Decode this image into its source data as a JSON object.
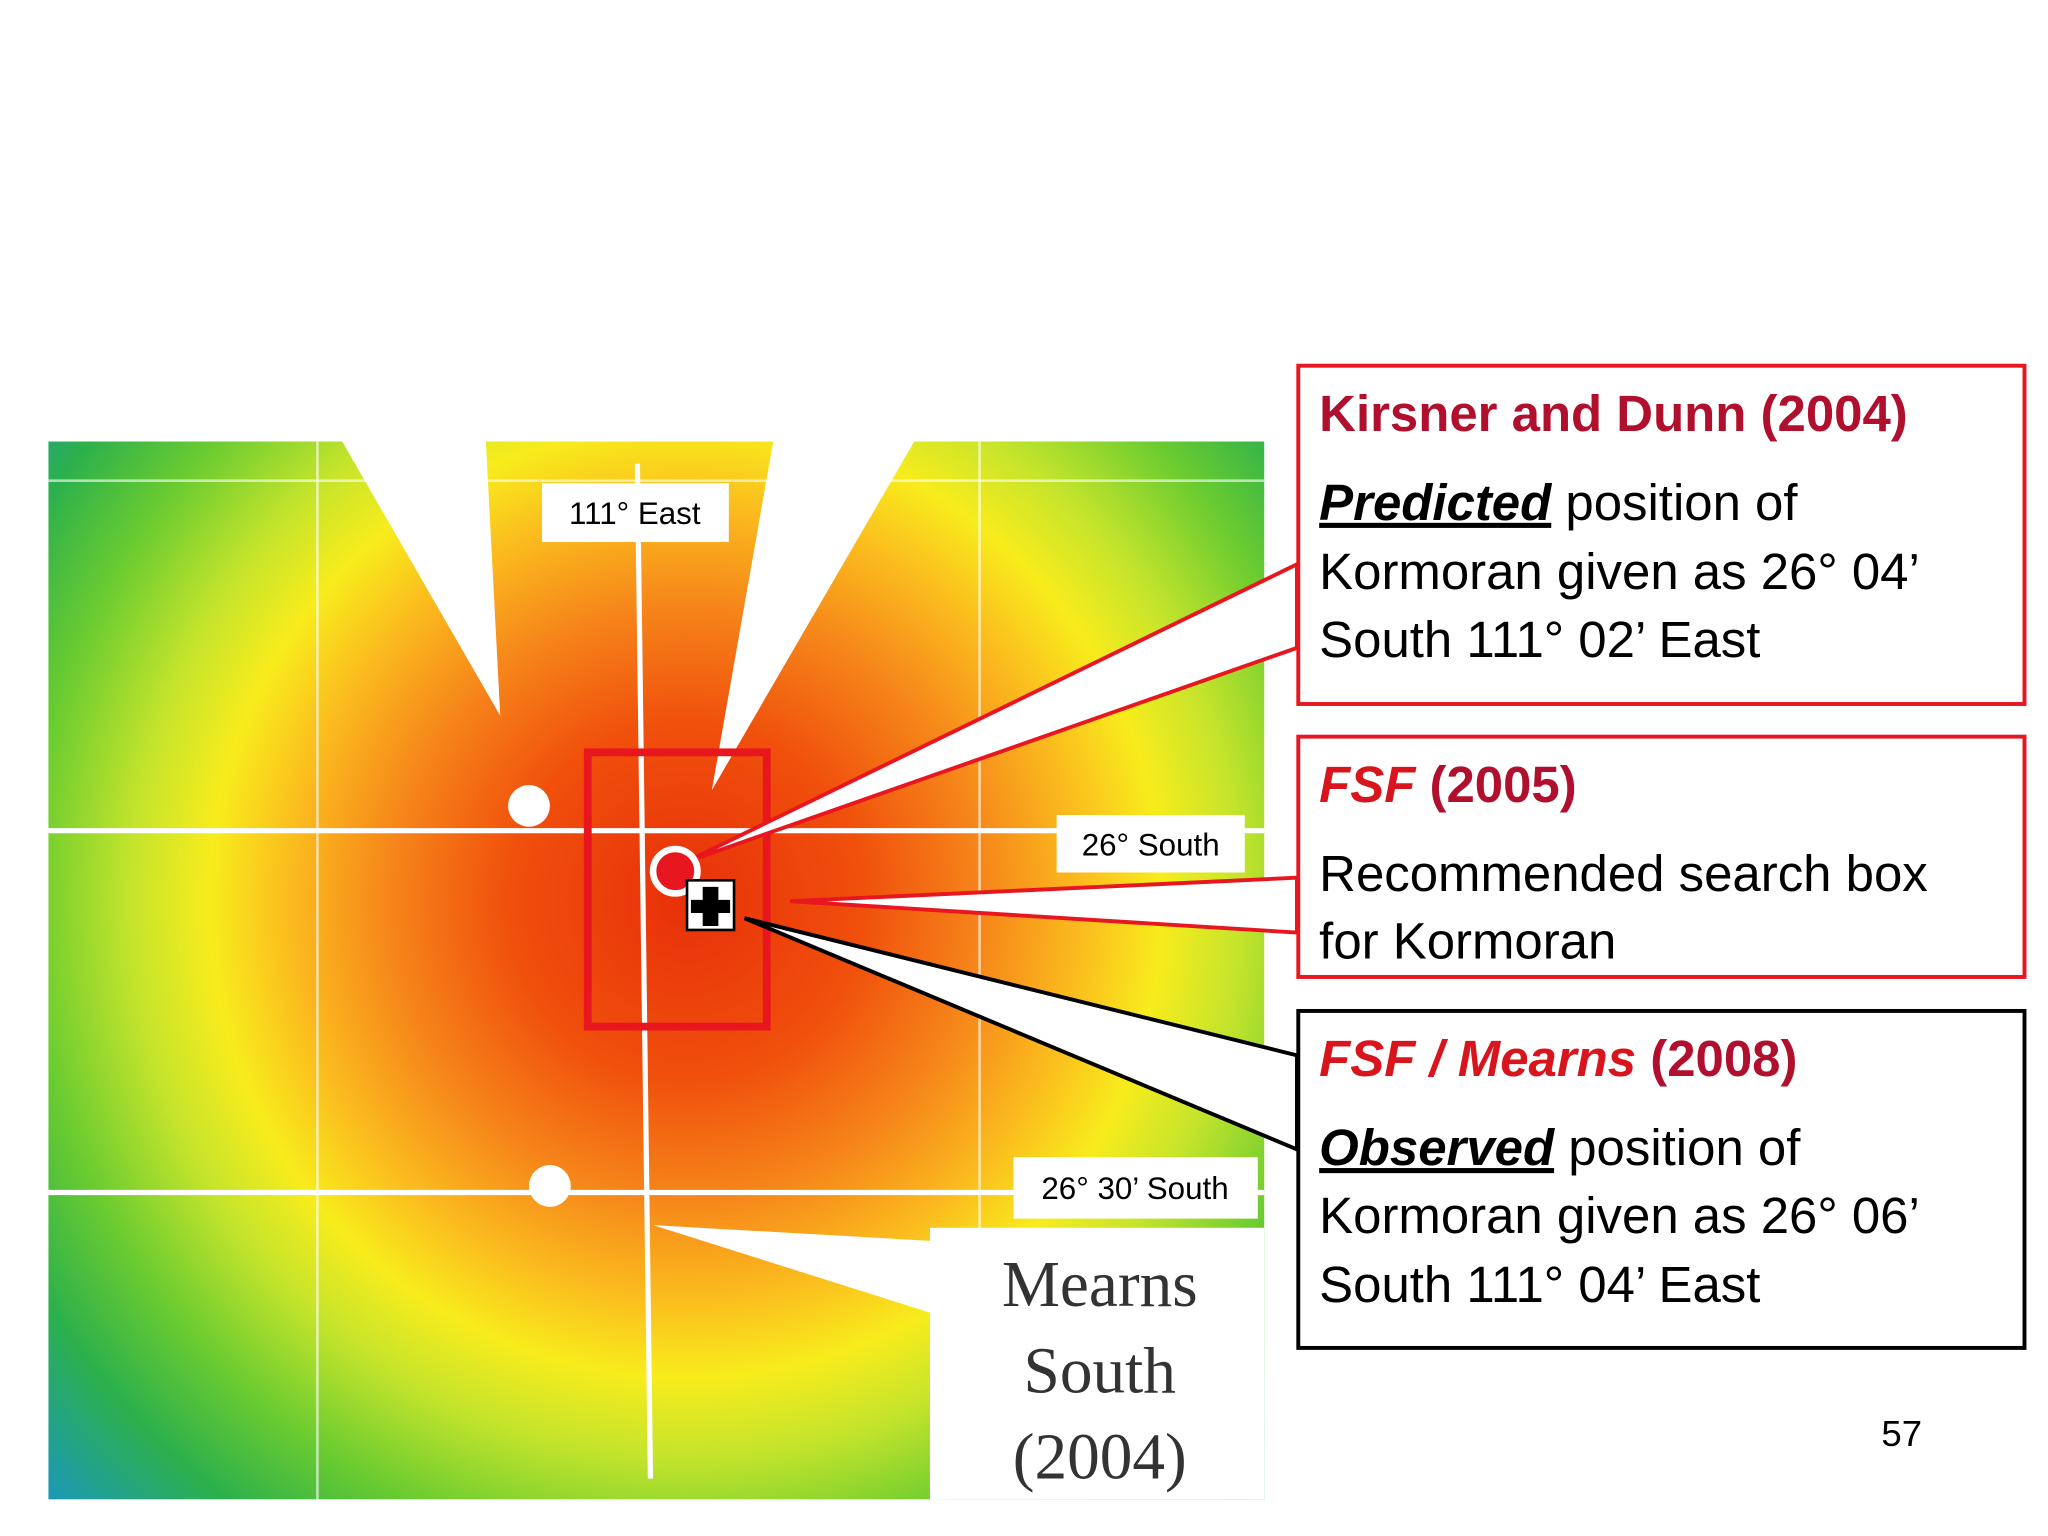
{
  "map": {
    "labels": {
      "east": "111° East",
      "south": "26° South",
      "south30": "26° 30’ South"
    },
    "credit": [
      "Mearns",
      "South",
      "(2004)"
    ]
  },
  "callouts": [
    {
      "title": "Kirsner and Dunn (2004)",
      "emphasis": "Predicted",
      "lines": [
        " position of",
        "Kormoran given as 26° 04’",
        "South 111° 02’ East"
      ]
    },
    {
      "title_emphasis": "FSF",
      "title": " (2005)",
      "lines": [
        "Recommended search box",
        "for Kormoran"
      ]
    },
    {
      "title_emphasis": "FSF / Mearns",
      "title": " (2008)",
      "emphasis": "Observed",
      "lines": [
        " position of",
        "Kormoran given as 26° 06’",
        "South 111° 04’ East"
      ]
    }
  ],
  "page_number": "57"
}
